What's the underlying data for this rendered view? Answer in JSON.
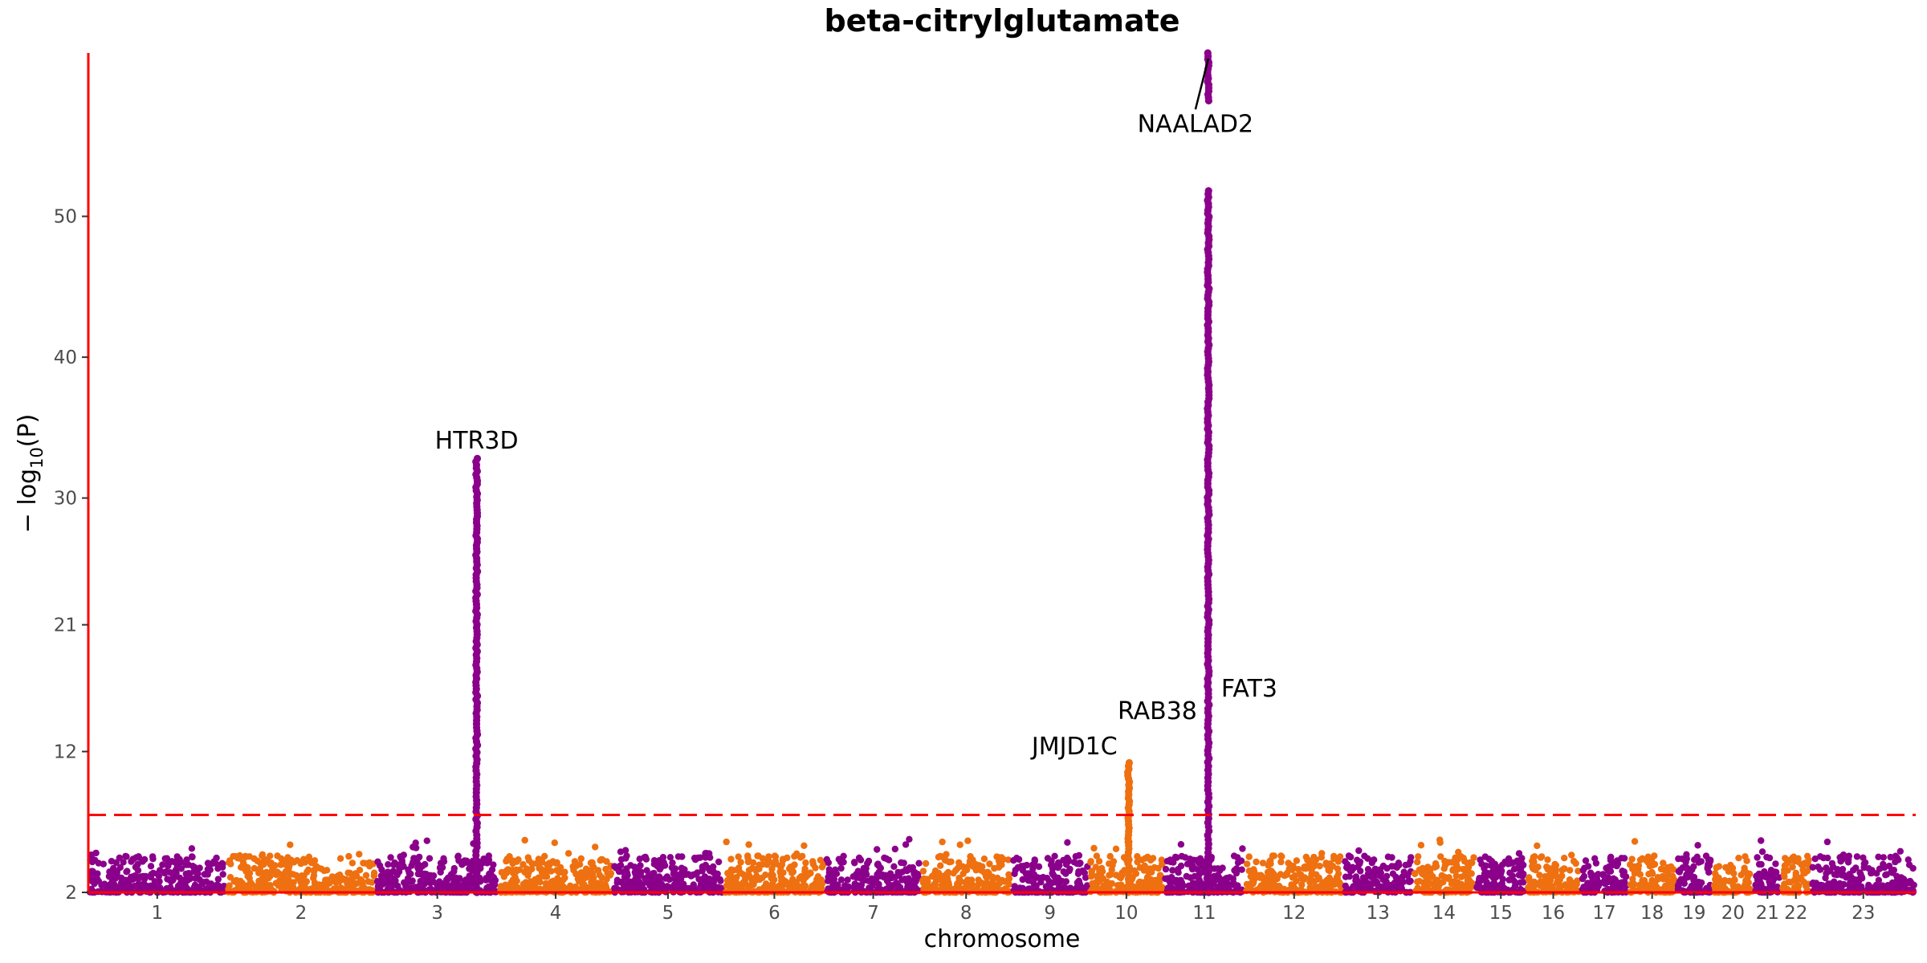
{
  "chart_data": {
    "type": "scatter",
    "title": "beta-citrylglutamate",
    "xlabel": "chromosome",
    "ylabel_main": "− log",
    "ylabel_sub": "10",
    "ylabel_tail": "(P)",
    "y_ticks": [
      2,
      12,
      21,
      30,
      40,
      50
    ],
    "y_range": [
      2,
      61.6
    ],
    "significance_threshold": 7.5,
    "colors": {
      "odd": "#8B008B",
      "even": "#EE7010",
      "threshold": "#FF0000",
      "axis": "#FF0000"
    },
    "chromosomes": [
      {
        "label": "1",
        "start": 0.0,
        "end": 4.6
      },
      {
        "label": "2",
        "start": 4.6,
        "end": 9.6
      },
      {
        "label": "3",
        "start": 9.6,
        "end": 13.7
      },
      {
        "label": "4",
        "start": 13.7,
        "end": 17.5
      },
      {
        "label": "5",
        "start": 17.5,
        "end": 21.2
      },
      {
        "label": "6",
        "start": 21.2,
        "end": 24.6
      },
      {
        "label": "7",
        "start": 24.6,
        "end": 27.8
      },
      {
        "label": "8",
        "start": 27.8,
        "end": 30.8
      },
      {
        "label": "9",
        "start": 30.8,
        "end": 33.4
      },
      {
        "label": "10",
        "start": 33.4,
        "end": 35.9
      },
      {
        "label": "11",
        "start": 35.9,
        "end": 38.6
      },
      {
        "label": "12",
        "start": 38.6,
        "end": 41.9
      },
      {
        "label": "13",
        "start": 41.9,
        "end": 44.2
      },
      {
        "label": "14",
        "start": 44.2,
        "end": 46.3
      },
      {
        "label": "15",
        "start": 46.3,
        "end": 48.0
      },
      {
        "label": "16",
        "start": 48.0,
        "end": 49.8
      },
      {
        "label": "17",
        "start": 49.8,
        "end": 51.4
      },
      {
        "label": "18",
        "start": 51.4,
        "end": 53.0
      },
      {
        "label": "19",
        "start": 53.0,
        "end": 54.2
      },
      {
        "label": "20",
        "start": 54.2,
        "end": 55.6
      },
      {
        "label": "21",
        "start": 55.6,
        "end": 56.5
      },
      {
        "label": "22",
        "start": 56.5,
        "end": 57.5
      },
      {
        "label": "23",
        "start": 57.5,
        "end": 61.0
      }
    ],
    "peaks": [
      {
        "chrom": "3",
        "pos": 0.82,
        "max": 32.8,
        "label": "HTR3D",
        "color": "odd"
      },
      {
        "chrom": "10",
        "pos": 0.53,
        "max": 11.2,
        "label": "JMJD1C",
        "color": "even"
      },
      {
        "chrom": "11",
        "pos": 0.55,
        "max": 61.6,
        "label": "NAALAD2",
        "color": "odd"
      }
    ],
    "annotations": [
      {
        "text": "HTR3D",
        "chrom": "3",
        "pos": 0.82,
        "y": 33.5
      },
      {
        "text": "JMJD1C",
        "chrom": "10",
        "pos": 0.53,
        "y": 11.8
      },
      {
        "text": "RAB38",
        "chrom": "11",
        "pos": 0.55,
        "y": 14.3
      },
      {
        "text": "FAT3",
        "chrom": "11",
        "pos": 0.55,
        "y": 15.9
      },
      {
        "text": "NAALAD2",
        "chrom": "11",
        "pos": 0.55,
        "y": 56.0
      }
    ]
  }
}
